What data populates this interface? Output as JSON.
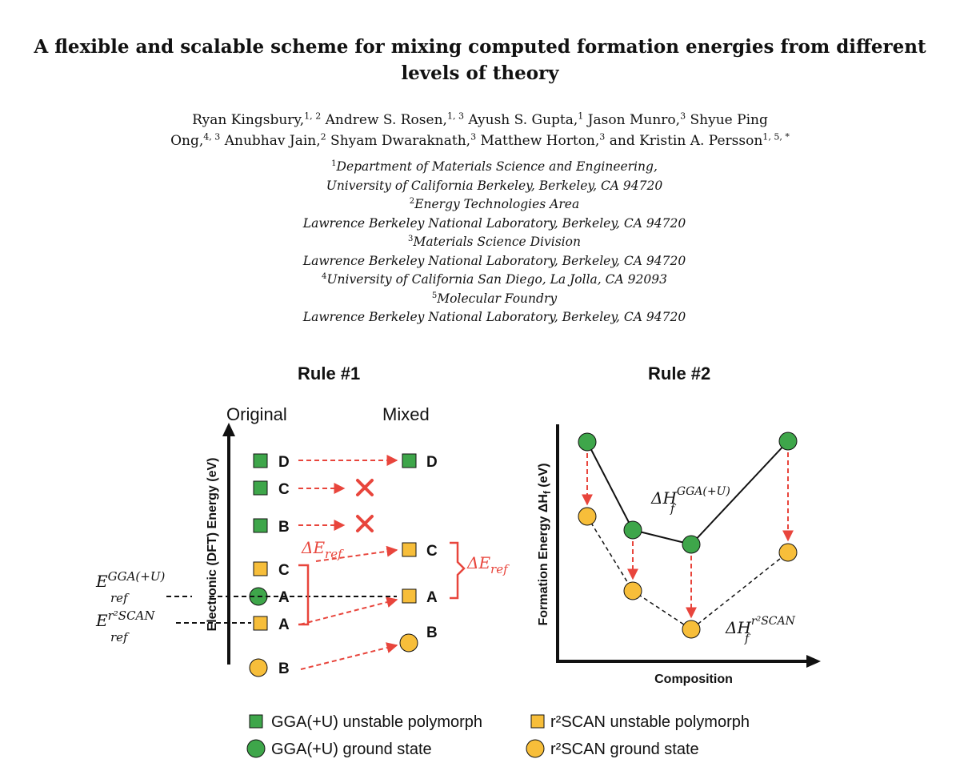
{
  "paper": {
    "title_line1": "A flexible and scalable scheme for mixing computed formation energies from different",
    "title_line2": "levels of theory",
    "authors_line1": [
      {
        "name": "Ryan Kingsbury,",
        "sup": "1, 2"
      },
      {
        "name": " Andrew S. Rosen,",
        "sup": "1, 3"
      },
      {
        "name": " Ayush S. Gupta,",
        "sup": "1"
      },
      {
        "name": " Jason Munro,",
        "sup": "3"
      },
      {
        "name": " Shyue Ping",
        "sup": ""
      }
    ],
    "authors_line2": [
      {
        "name": "Ong,",
        "sup": "4, 3"
      },
      {
        "name": " Anubhav Jain,",
        "sup": "2"
      },
      {
        "name": " Shyam Dwaraknath,",
        "sup": "3"
      },
      {
        "name": " Matthew Horton,",
        "sup": "3"
      },
      {
        "name": " and Kristin A. Persson",
        "sup": "1, 5, *"
      }
    ],
    "affiliations": [
      {
        "sup": "1",
        "text": "Department of Materials Science and Engineering,"
      },
      {
        "sup": "",
        "text": "University of California Berkeley, Berkeley, CA 94720"
      },
      {
        "sup": "2",
        "text": "Energy Technologies Area"
      },
      {
        "sup": "",
        "text": "Lawrence Berkeley National Laboratory, Berkeley, CA 94720"
      },
      {
        "sup": "3",
        "text": "Materials Science Division"
      },
      {
        "sup": "",
        "text": "Lawrence Berkeley National Laboratory, Berkeley, CA 94720"
      },
      {
        "sup": "4",
        "text": "University of California San Diego, La Jolla, CA 92093"
      },
      {
        "sup": "5",
        "text": "Molecular Foundry"
      },
      {
        "sup": "",
        "text": "Lawrence Berkeley National Laboratory, Berkeley, CA 94720"
      }
    ]
  },
  "figure": {
    "colors": {
      "green": "#3ea64a",
      "yellow": "#f7be3a",
      "red": "#e8453c",
      "dark": "#111111"
    },
    "rule1": {
      "title": "Rule #1",
      "col_original": "Original",
      "col_mixed": "Mixed",
      "yaxis_label": "Electronic (DFT) Energy (eV)",
      "original_labels": [
        "D",
        "C",
        "B",
        "C",
        "A",
        "A",
        "B"
      ],
      "mixed_labels": [
        "D",
        "C",
        "A",
        "B"
      ],
      "ref_gga_main": "E",
      "ref_gga_sup": "GGA(+U)",
      "ref_gga_sub": "ref",
      "ref_scan_main": "E",
      "ref_scan_sup": "r²SCAN",
      "ref_scan_sub": "ref",
      "delta_main": "ΔE",
      "delta_sub": "ref"
    },
    "rule2": {
      "title": "Rule #2",
      "xaxis_label": "Composition",
      "yaxis_main": "Formation Energy ΔH",
      "yaxis_sub": "f",
      "yaxis_unit": " (eV)",
      "gga_label_main": "ΔH",
      "gga_label_sub": "f",
      "gga_label_sup": "GGA(+U)",
      "scan_label_main": "ΔH",
      "scan_label_sub": "f",
      "scan_label_sup": "r²SCAN"
    },
    "legend": [
      {
        "marker": "green-square",
        "text": "GGA(+U) unstable polymorph"
      },
      {
        "marker": "yellow-square",
        "text": "r²SCAN unstable polymorph"
      },
      {
        "marker": "green-circle",
        "text": "GGA(+U) ground state"
      },
      {
        "marker": "yellow-circle",
        "text": "r²SCAN ground state"
      }
    ]
  }
}
